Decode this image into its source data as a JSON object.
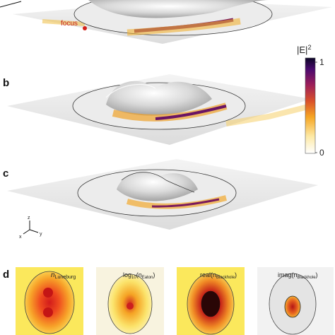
{
  "panels": {
    "b": {
      "label": "b"
    },
    "c": {
      "label": "c"
    },
    "d": {
      "label": "d"
    }
  },
  "annotation": {
    "focus": "focus"
  },
  "colorbar": {
    "symbol": "|E|",
    "exponent": "2",
    "max": "1",
    "min": "0",
    "colors": [
      "#ffffff",
      "#fde9a4",
      "#f6a623",
      "#d9502a",
      "#9c1e5a",
      "#4b0a6e",
      "#0b0526"
    ]
  },
  "axes_triad": {
    "z": "z",
    "x": "x",
    "y": "y"
  },
  "thumbnails": [
    {
      "main": "n",
      "sub": "Luneburg",
      "suffix": ""
    },
    {
      "main": "log",
      "sub10": "10",
      "paren_open": "(n",
      "sub": "Eaton",
      "suffix": ")"
    },
    {
      "main": "real(n",
      "sub": "Blackhole",
      "suffix": ")"
    },
    {
      "main": "imag(n",
      "sub": "Blackhole",
      "suffix": ")"
    }
  ]
}
